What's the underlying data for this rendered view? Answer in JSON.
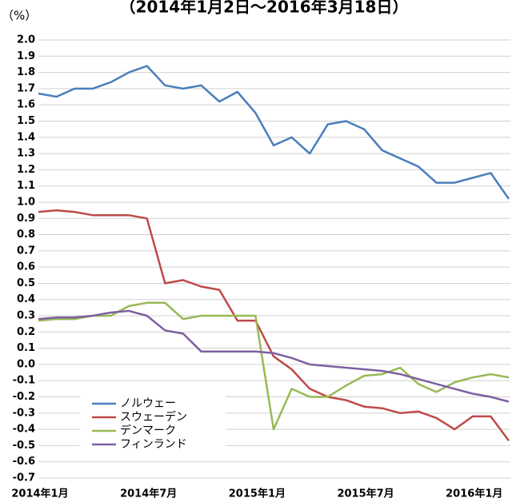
{
  "chart_data": {
    "type": "line",
    "title": "（2014年1月2日～2016年3月18日）",
    "y_label": "（%）",
    "categories": [
      "2014年1月",
      null,
      null,
      null,
      null,
      null,
      "2014年7月",
      null,
      null,
      null,
      null,
      null,
      "2015年1月",
      null,
      null,
      null,
      null,
      null,
      "2015年7月",
      null,
      null,
      null,
      null,
      null,
      "2016年1月",
      null,
      null
    ],
    "series": [
      {
        "name": "ノルウェー",
        "color": "#4a7ebb",
        "values": [
          1.67,
          1.65,
          1.7,
          1.7,
          1.74,
          1.8,
          1.84,
          1.72,
          1.7,
          1.72,
          1.62,
          1.68,
          1.55,
          1.35,
          1.4,
          1.3,
          1.48,
          1.5,
          1.45,
          1.32,
          1.27,
          1.22,
          1.12,
          1.12,
          1.15,
          1.18,
          1.02
        ]
      },
      {
        "name": "スウェーデン",
        "color": "#be4b48",
        "values": [
          0.94,
          0.95,
          0.94,
          0.92,
          0.92,
          0.92,
          0.9,
          0.5,
          0.52,
          0.48,
          0.46,
          0.27,
          0.27,
          0.05,
          -0.03,
          -0.15,
          -0.2,
          -0.22,
          -0.26,
          -0.27,
          -0.3,
          -0.29,
          -0.33,
          -0.4,
          -0.32,
          -0.32,
          -0.47
        ]
      },
      {
        "name": "デンマーク",
        "color": "#98b954",
        "values": [
          0.27,
          0.28,
          0.28,
          0.3,
          0.3,
          0.36,
          0.38,
          0.38,
          0.28,
          0.3,
          0.3,
          0.3,
          0.3,
          -0.4,
          -0.15,
          -0.2,
          -0.2,
          -0.13,
          -0.07,
          -0.06,
          -0.02,
          -0.12,
          -0.17,
          -0.11,
          -0.08,
          -0.06,
          -0.08
        ]
      },
      {
        "name": "フィンランド",
        "color": "#7d60a0",
        "values": [
          0.28,
          0.29,
          0.29,
          0.3,
          0.32,
          0.33,
          0.3,
          0.21,
          0.19,
          0.08,
          0.08,
          0.08,
          0.08,
          0.07,
          0.04,
          0.0,
          -0.01,
          -0.02,
          -0.03,
          -0.04,
          -0.06,
          -0.09,
          -0.12,
          -0.15,
          -0.18,
          -0.2,
          -0.23
        ]
      }
    ],
    "ylim": [
      -0.7,
      2.0
    ],
    "yticks": [
      {
        "value": 2,
        "label": "2.0"
      },
      1.9,
      1.8,
      1.7,
      1.6,
      1.5,
      1.4,
      1.3,
      1.2,
      1.1,
      {
        "value": 1,
        "label": "1.0"
      },
      0.9,
      0.8,
      0.7,
      0.6,
      0.5,
      0.4,
      0.3,
      0.2,
      0.1,
      {
        "value": 0,
        "label": "0.0"
      },
      -0.1,
      -0.2,
      -0.3,
      -0.4,
      -0.5,
      -0.6,
      -0.7
    ],
    "grid": true,
    "legend": "lower left"
  }
}
